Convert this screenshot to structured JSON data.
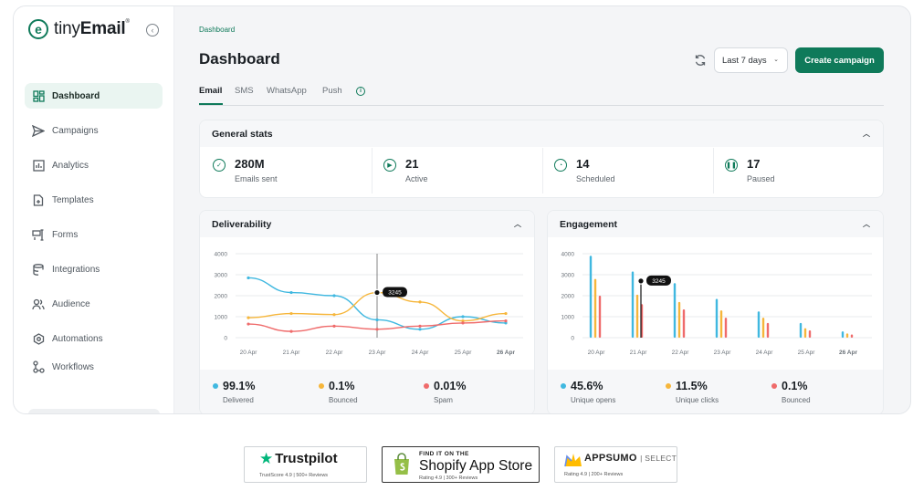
{
  "brand": {
    "name_light": "tiny",
    "name_bold": "Email",
    "trademark": "®",
    "logo_letter": "e"
  },
  "sidebar": {
    "items": [
      {
        "label": "Dashboard",
        "icon": "dashboard-grid-icon"
      },
      {
        "label": "Campaigns",
        "icon": "send-icon"
      },
      {
        "label": "Analytics",
        "icon": "bar-chart-icon"
      },
      {
        "label": "Templates",
        "icon": "template-doc-icon"
      },
      {
        "label": "Forms",
        "icon": "form-icon"
      },
      {
        "label": "Integrations",
        "icon": "database-icon"
      },
      {
        "label": "Audience",
        "icon": "users-icon"
      },
      {
        "label": "Automations",
        "icon": "automation-hex-icon"
      },
      {
        "label": "Workflows",
        "icon": "workflow-icon"
      }
    ]
  },
  "header": {
    "breadcrumb": "Dashboard",
    "title": "Dashboard",
    "date_range": "Last 7 days",
    "create_label": "Create campaign"
  },
  "tabs": [
    "Email",
    "SMS",
    "WhatsApp",
    "Push"
  ],
  "tab_info_glyph": "i",
  "general_stats": {
    "title": "General stats",
    "items": [
      {
        "value": "280M",
        "label": "Emails sent",
        "icon": "check-circle-icon"
      },
      {
        "value": "21",
        "label": "Active",
        "icon": "play-circle-icon"
      },
      {
        "value": "14",
        "label": "Scheduled",
        "icon": "clock-icon"
      },
      {
        "value": "17",
        "label": "Paused",
        "icon": "pause-circle-icon"
      }
    ]
  },
  "deliverability": {
    "title": "Deliverability",
    "legend": [
      {
        "value": "99.1%",
        "label": "Delivered",
        "color": "#40b8e0"
      },
      {
        "value": "0.1%",
        "label": "Bounced",
        "color": "#f6b63b"
      },
      {
        "value": "0.01%",
        "label": "Spam",
        "color": "#ef6b6b"
      }
    ]
  },
  "engagement": {
    "title": "Engagement",
    "legend": [
      {
        "value": "45.6%",
        "label": "Unique opens",
        "color": "#40b8e0"
      },
      {
        "value": "11.5%",
        "label": "Unique clicks",
        "color": "#f6b63b"
      },
      {
        "value": "0.1%",
        "label": "Bounced",
        "color": "#ef6b6b"
      }
    ]
  },
  "chart_data": [
    {
      "type": "line",
      "title": "Deliverability",
      "categories": [
        "20 Apr",
        "21 Apr",
        "22 Apr",
        "23 Apr",
        "24 Apr",
        "25 Apr",
        "26 Apr"
      ],
      "ylim": [
        0,
        4000
      ],
      "yticks": [
        0,
        1000,
        2000,
        3000,
        4000
      ],
      "series": [
        {
          "name": "Delivered",
          "color": "#40b8e0",
          "values": [
            2850,
            2150,
            2000,
            850,
            400,
            1000,
            700
          ]
        },
        {
          "name": "Bounced",
          "color": "#f6b63b",
          "values": [
            950,
            1150,
            1100,
            2150,
            1700,
            800,
            1150
          ]
        },
        {
          "name": "Spam",
          "color": "#ef6b6b",
          "values": [
            650,
            300,
            550,
            400,
            550,
            700,
            800
          ]
        }
      ],
      "tooltip": {
        "category": "23 Apr",
        "label": "3245"
      }
    },
    {
      "type": "bar",
      "title": "Engagement",
      "categories": [
        "20 Apr",
        "21 Apr",
        "22 Apr",
        "23 Apr",
        "24 Apr",
        "25 Apr",
        "26 Apr"
      ],
      "ylim": [
        0,
        4000
      ],
      "yticks": [
        0,
        1000,
        2000,
        3000,
        4000
      ],
      "series": [
        {
          "name": "Unique opens",
          "color": "#40b8e0",
          "values": [
            3900,
            3150,
            2600,
            1850,
            1250,
            700,
            300
          ]
        },
        {
          "name": "Unique clicks",
          "color": "#f6b63b",
          "values": [
            2800,
            2050,
            1700,
            1300,
            950,
            450,
            200
          ]
        },
        {
          "name": "Bounced",
          "color": "#ef6b6b",
          "values": [
            2000,
            1600,
            1350,
            950,
            700,
            350,
            150
          ]
        }
      ],
      "tooltip": {
        "category": "21 Apr",
        "label": "3245"
      }
    }
  ],
  "badges": {
    "trustpilot": {
      "name": "Trustpilot",
      "sub": "TrustScore 4.9 | 500+ Reviews"
    },
    "shopify": {
      "small": "FIND IT ON THE",
      "big": "Shopify App Store",
      "sub": "Rating 4.9 | 300+ Reviews"
    },
    "appsumo": {
      "name": "APPSUMO",
      "select": "SELECT",
      "sub": "Rating 4.9 | 200+ Reviews"
    }
  }
}
